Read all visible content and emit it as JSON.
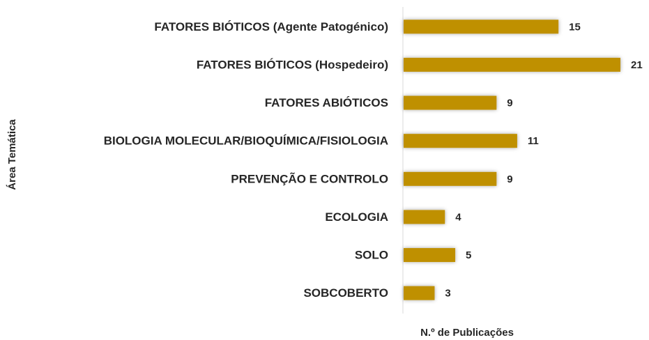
{
  "chart_data": {
    "type": "barh",
    "categories": [
      "FATORES BIÓTICOS (Agente Patogénico)",
      "FATORES BIÓTICOS (Hospedeiro)",
      "FATORES ABIÓTICOS",
      "BIOLOGIA MOLECULAR/BIOQUÍMICA/FISIOLOGIA",
      "PREVENÇÃO E CONTROLO",
      "ECOLOGIA",
      "SOLO",
      "SOBCOBERTO"
    ],
    "values": [
      15,
      21,
      9,
      11,
      9,
      4,
      5,
      3
    ],
    "color": "#bf9000",
    "xlim": [
      0,
      21
    ],
    "x_label": "N.º de Publicações",
    "y_label": "Área Temática"
  }
}
